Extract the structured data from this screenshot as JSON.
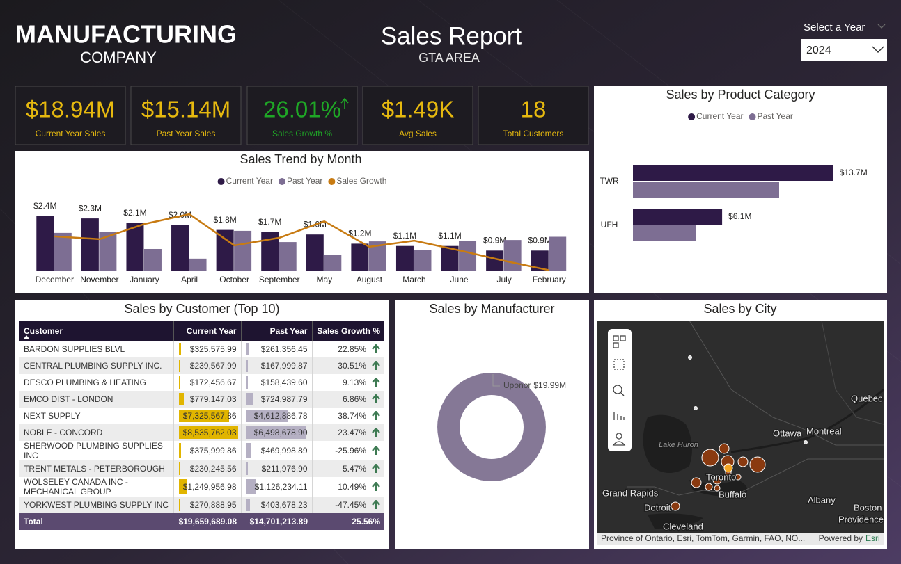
{
  "header": {
    "title": "MANUFACTURING",
    "subtitle": "COMPANY",
    "report_title": "Sales Report",
    "report_subtitle": "GTA AREA",
    "filter_label": "Select a Year",
    "filter_value": "2024"
  },
  "kpis": [
    {
      "value": "$18.94M",
      "label": "Current Year Sales",
      "color": "#e6b90f"
    },
    {
      "value": "$15.14M",
      "label": "Past Year Sales",
      "color": "#e6b90f"
    },
    {
      "value": "26.01%",
      "label": "Sales Growth %",
      "color": "#1fa626"
    },
    {
      "value": "$1.49K",
      "label": "Avg Sales",
      "color": "#e6b90f"
    },
    {
      "value": "18",
      "label": "Total Customers",
      "color": "#e6b90f"
    }
  ],
  "chart_data": [
    {
      "type": "bar",
      "title": "Sales Trend by Month",
      "categories": [
        "December",
        "November",
        "January",
        "April",
        "October",
        "September",
        "May",
        "August",
        "March",
        "June",
        "July",
        "February"
      ],
      "series": [
        {
          "name": "Current Year",
          "color": "#2e1a47",
          "values": [
            2.4,
            2.3,
            2.1,
            2.0,
            1.8,
            1.7,
            1.6,
            1.2,
            1.1,
            1.1,
            0.9,
            0.9
          ],
          "value_labels": [
            "$2.4M",
            "$2.3M",
            "$2.1M",
            "$2.0M",
            "$1.8M",
            "$1.7M",
            "$1.6M",
            "$1.2M",
            "$1.1M",
            "$1.1M",
            "$0.9M",
            "$0.9M"
          ]
        },
        {
          "name": "Past Year",
          "color": "#7d6e93",
          "values": [
            1.67,
            1.7,
            0.97,
            0.55,
            1.76,
            1.27,
            0.7,
            1.3,
            0.91,
            1.33,
            1.36,
            1.5
          ]
        },
        {
          "name": "Sales Growth",
          "color": "#c87b12",
          "type": "line",
          "axis": "y2",
          "values": [
            127,
            113,
            190,
            240,
            81,
            120,
            204,
            74,
            105,
            56,
            3,
            -45
          ]
        }
      ],
      "ylim": [
        0,
        3
      ],
      "y2lim": [
        -50,
        300
      ],
      "legend": "top"
    },
    {
      "type": "barh",
      "title": "Sales by Product Category",
      "categories": [
        "TWR",
        "UFH"
      ],
      "series": [
        {
          "name": "Current Year",
          "color": "#2e1a47",
          "values": [
            13.7,
            6.1
          ],
          "value_labels": [
            "$13.7M",
            "$6.1M"
          ]
        },
        {
          "name": "Past Year",
          "color": "#7d6e93",
          "values": [
            10.0,
            4.3
          ]
        }
      ],
      "xlim": [
        0,
        15
      ],
      "legend": "top"
    },
    {
      "type": "donut",
      "title": "Sales by Manufacturer",
      "categories": [
        "Uponor"
      ],
      "values": [
        19.99
      ],
      "value_labels": [
        "$19.99M"
      ],
      "colors": [
        "#857896"
      ]
    }
  ],
  "table": {
    "title": "Sales by Customer (Top 10)",
    "columns": [
      "Customer",
      "Current Year",
      "Past Year",
      "Sales Growth %"
    ],
    "rows": [
      [
        "BARDON SUPPLIES BLVL",
        "$325,575.99",
        "$261,356.45",
        "22.85%"
      ],
      [
        "CENTRAL PLUMBING SUPPLY INC.",
        "$239,567.99",
        "$167,999.87",
        "30.51%"
      ],
      [
        "DESCO PLUMBING & HEATING",
        "$172,456.67",
        "$158,439.60",
        "9.13%"
      ],
      [
        "EMCO DIST - LONDON",
        "$779,147.03",
        "$724,987.79",
        "6.86%"
      ],
      [
        "NEXT SUPPLY",
        "$7,325,567.86",
        "$4,612,886.78",
        "38.74%"
      ],
      [
        "NOBLE - CONCORD",
        "$8,535,762.03",
        "$6,498,678.90",
        "23.47%"
      ],
      [
        "SHERWOOD PLUMBING SUPPLIES INC",
        "$375,999.86",
        "$469,998.89",
        "-25.96%"
      ],
      [
        "TRENT METALS - PETERBOROUGH",
        "$230,245.56",
        "$211,976.90",
        "5.47%"
      ],
      [
        "WOLSELEY CANADA INC - MECHANICAL GROUP",
        "$1,249,956.98",
        "$1,126,234.11",
        "10.49%"
      ],
      [
        "YORKWEST PLUMBING SUPPLY INC",
        "$270,888.95",
        "$403,678.23",
        "-47.45%"
      ]
    ],
    "total": [
      "Total",
      "$19,659,689.08",
      "$14,701,213.89",
      "25.56%"
    ]
  },
  "map": {
    "title": "Sales by City",
    "labels": [
      "Quebec",
      "Ottawa",
      "Montreal",
      "Lake Huron",
      "Grand Rapids",
      "Toronto",
      "Buffalo",
      "Albany",
      "Detroit",
      "Cleveland",
      "Boston",
      "Providence"
    ],
    "attribution": "Province of Ontario, Esri, TomTom, Garmin, FAO, NO...",
    "powered_by": "Powered by",
    "provider": "Esri"
  }
}
